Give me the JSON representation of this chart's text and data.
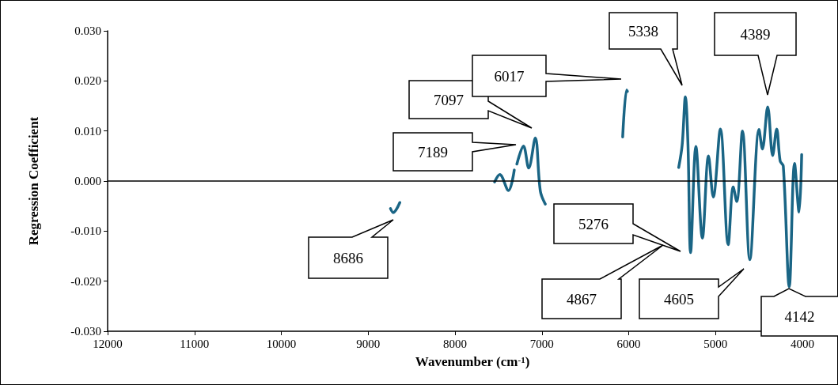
{
  "chart_data": {
    "type": "line",
    "xlabel": "Wavenumber (cm$^{-1}$)",
    "ylabel": "Regression Coefficient",
    "xlim": [
      12000,
      3600
    ],
    "xticks": [
      12000,
      11000,
      10000,
      9000,
      8000,
      7000,
      6000,
      5000,
      4000
    ],
    "ylim": [
      -0.03,
      0.03
    ],
    "yticks": [
      {
        "value": -0.03,
        "label": "-0.030"
      },
      {
        "value": -0.02,
        "label": "-0.020"
      },
      {
        "value": -0.01,
        "label": "-0.010"
      },
      {
        "value": 0,
        "label": "0.000"
      },
      {
        "value": 0.01,
        "label": "0.010"
      },
      {
        "value": 0.02,
        "label": "0.020"
      },
      {
        "value": 0.03,
        "label": "0.030"
      }
    ],
    "grid": false,
    "marker": "none",
    "line_style": "solid",
    "ref_lines": [
      {
        "axis": "y",
        "value": 0,
        "color": "#000000"
      }
    ],
    "series": [
      {
        "color": "#1a6585",
        "x": [
          8743,
          8712,
          8636
        ],
        "values": [
          -0.0055,
          -0.0063,
          -0.0043
        ]
      },
      {
        "color": "#1a6585",
        "x": [
          7545,
          7485,
          7385,
          7318
        ],
        "values": [
          -0.0002,
          0.0013,
          -0.0019,
          0.0022
        ]
      },
      {
        "color": "#1a6585",
        "x": [
          7288,
          7212,
          7152,
          7076,
          7018,
          6961
        ],
        "values": [
          0.0034,
          0.007,
          0.0026,
          0.0086,
          -0.002,
          -0.0046
        ]
      },
      {
        "color": "#1a6585",
        "x": [
          6070,
          6025,
          6015
        ],
        "values": [
          0.0088,
          0.0182,
          0.0179
        ]
      },
      {
        "color": "#1a6585",
        "x": [
          5425,
          5385,
          5348,
          5318,
          5288,
          5227,
          5152,
          5082,
          5027,
          4945,
          4855,
          4797,
          4757,
          4691,
          4606,
          4500,
          4461,
          4400,
          4343,
          4297,
          4257,
          4221,
          4152,
          4091,
          4039,
          4009
        ],
        "values": [
          0.0027,
          0.0072,
          0.0168,
          0.0072,
          -0.0143,
          0.0069,
          -0.0114,
          0.005,
          -0.0032,
          0.0104,
          -0.0127,
          -0.0012,
          -0.0041,
          0.01,
          -0.0157,
          0.0103,
          0.0064,
          0.0148,
          0.0051,
          0.0104,
          0.004,
          0.003,
          -0.0211,
          0.0035,
          -0.0062,
          0.0053
        ]
      }
    ],
    "annotations": [
      "8686",
      "7189",
      "7097",
      "6017",
      "5338",
      "4389",
      "5276",
      "4867",
      "4605",
      "4142"
    ]
  }
}
